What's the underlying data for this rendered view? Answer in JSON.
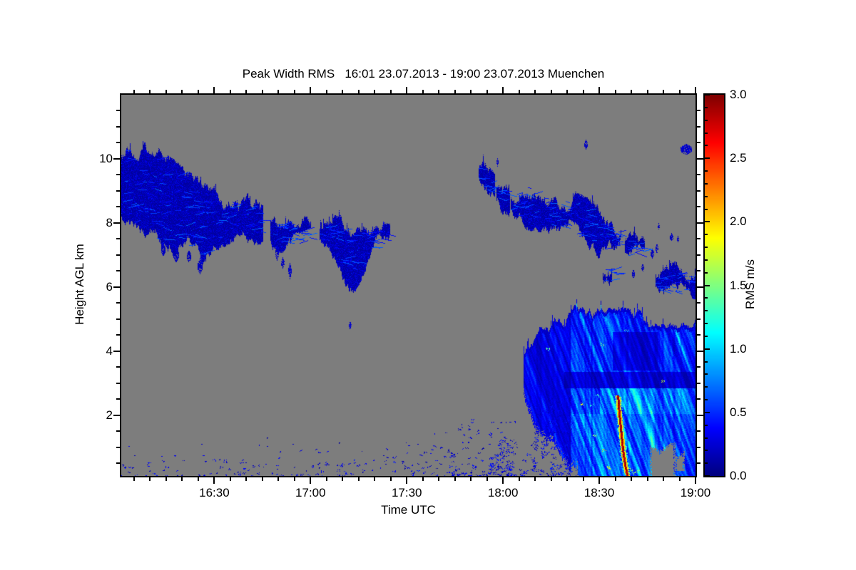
{
  "page": {
    "background": "#ffffff"
  },
  "chart_data": {
    "type": "heatmap",
    "title": "Peak Width RMS   16:01 23.07.2013 - 19:00 23.07.2013 Muenchen",
    "xlabel": "Time UTC",
    "ylabel": "Height AGL km",
    "value_label": "RMS m/s",
    "no_data_color": "#7d7d7d",
    "frame_color": "#000000",
    "text_color": "#000000",
    "render_seed": 7,
    "x_axis": {
      "start_min": 1,
      "end_min": 180,
      "start_label": "16:01",
      "end_label": "19:00",
      "major_ticks": [
        {
          "t": 30,
          "label": "16:30"
        },
        {
          "t": 60,
          "label": "17:00"
        },
        {
          "t": 90,
          "label": "17:30"
        },
        {
          "t": 120,
          "label": "18:00"
        },
        {
          "t": 150,
          "label": "18:30"
        },
        {
          "t": 180,
          "label": "19:00"
        }
      ],
      "minor_step_min": 5
    },
    "y_axis": {
      "min_km": 0.1,
      "max_km": 12.0,
      "major_ticks": [
        {
          "h": 2,
          "label": "2"
        },
        {
          "h": 4,
          "label": "4"
        },
        {
          "h": 6,
          "label": "6"
        },
        {
          "h": 8,
          "label": "8"
        },
        {
          "h": 10,
          "label": "10"
        }
      ],
      "minor_step_km": 0.5
    },
    "colorbar": {
      "min": 0,
      "max": 3,
      "major_ticks": [
        {
          "v": 0.0,
          "label": "0.0"
        },
        {
          "v": 0.5,
          "label": "0.5"
        },
        {
          "v": 1.0,
          "label": "1.0"
        },
        {
          "v": 1.5,
          "label": "1.5"
        },
        {
          "v": 2.0,
          "label": "2.0"
        },
        {
          "v": 2.5,
          "label": "2.5"
        },
        {
          "v": 3.0,
          "label": "3.0"
        }
      ],
      "minor_step": 0.1,
      "colormap": "jet"
    },
    "features": {
      "clouds": [
        {
          "name": "cirrus-deck-west",
          "value": [
            0.07,
            0.42
          ],
          "columns": [
            [
              1,
              8.3,
              10.2
            ],
            [
              3,
              8.05,
              10.38
            ],
            [
              6,
              7.9,
              10.32
            ],
            [
              9,
              7.7,
              10.22
            ],
            [
              12,
              7.5,
              10.02
            ],
            [
              15,
              7.38,
              9.82
            ],
            [
              18,
              7.3,
              9.58
            ],
            [
              21,
              7.28,
              9.32
            ],
            [
              24,
              7.05,
              9.15
            ],
            [
              26,
              6.7,
              9.02
            ],
            [
              28,
              7.28,
              8.95
            ],
            [
              31,
              7.5,
              8.87
            ],
            [
              34,
              7.65,
              8.78
            ],
            [
              37,
              7.78,
              8.68
            ],
            [
              40,
              7.68,
              8.58
            ],
            [
              43,
              7.62,
              8.5
            ],
            [
              45,
              7.72,
              8.4
            ]
          ]
        },
        {
          "name": "cirrus-mid-a",
          "value": [
            0.07,
            0.4
          ],
          "columns": [
            [
              47.5,
              7.55,
              8.15
            ],
            [
              50,
              7.4,
              8.05
            ],
            [
              53,
              7.35,
              7.97
            ],
            [
              56,
              7.32,
              7.92
            ],
            [
              58,
              7.4,
              7.88
            ],
            [
              60,
              7.5,
              7.8
            ]
          ]
        },
        {
          "name": "cirrus-mid-b",
          "value": [
            0.07,
            0.45
          ],
          "columns": [
            [
              62.8,
              7.45,
              7.72
            ],
            [
              65,
              7.3,
              7.85
            ],
            [
              68,
              7.1,
              7.9
            ],
            [
              70,
              6.55,
              7.9
            ],
            [
              72,
              6.1,
              7.88
            ],
            [
              74,
              6.2,
              7.82
            ],
            [
              76,
              6.6,
              7.8
            ],
            [
              78,
              7.0,
              7.8
            ],
            [
              80,
              7.2,
              7.77
            ],
            [
              82,
              7.38,
              7.72
            ],
            [
              84.5,
              7.5,
              7.62
            ]
          ]
        },
        {
          "name": "cirrus-east-frag-1",
          "value": [
            0.07,
            0.35
          ],
          "columns": [
            [
              112.3,
              9.3,
              9.78
            ],
            [
              114,
              9.1,
              9.6
            ],
            [
              116,
              8.95,
              9.38
            ],
            [
              117.2,
              9.0,
              9.2
            ]
          ]
        },
        {
          "name": "cirrus-east-frag-2",
          "value": [
            0.07,
            0.35
          ],
          "columns": [
            [
              118,
              8.75,
              9.12
            ],
            [
              120,
              8.6,
              9.05
            ],
            [
              122,
              8.55,
              8.9
            ]
          ]
        },
        {
          "name": "cirrus-deck-east",
          "value": [
            0.07,
            0.42
          ],
          "columns": [
            [
              122.5,
              8.35,
              8.9
            ],
            [
              125,
              8.2,
              9.05
            ],
            [
              128,
              8.1,
              9.12
            ],
            [
              131,
              8.05,
              9.0
            ],
            [
              134,
              7.95,
              8.9
            ],
            [
              137,
              7.85,
              8.8
            ],
            [
              140,
              7.8,
              8.72
            ],
            [
              143,
              7.6,
              8.6
            ],
            [
              146,
              7.42,
              8.45
            ],
            [
              149,
              7.25,
              8.3
            ],
            [
              152,
              7.15,
              8.1
            ],
            [
              155,
              7.1,
              7.9
            ],
            [
              157,
              7.2,
              7.7
            ]
          ]
        },
        {
          "name": "cirrus-east-frag-3",
          "value": [
            0.07,
            0.3
          ],
          "columns": [
            [
              158,
              7.0,
              7.5
            ],
            [
              160,
              6.88,
              7.42
            ],
            [
              162,
              6.95,
              7.3
            ],
            [
              164,
              7.0,
              7.22
            ]
          ]
        },
        {
          "name": "midlevel-blob",
          "value": [
            0.07,
            0.35
          ],
          "columns": [
            [
              151,
              6.2,
              6.55
            ],
            [
              153,
              6.12,
              6.6
            ],
            [
              155.5,
              6.25,
              6.5
            ]
          ]
        },
        {
          "name": "band-low-east",
          "value": [
            0.07,
            0.4
          ],
          "columns": [
            [
              167.5,
              6.0,
              6.3
            ],
            [
              170,
              5.85,
              6.4
            ],
            [
              173,
              5.78,
              6.45
            ],
            [
              176,
              5.85,
              6.42
            ],
            [
              178,
              5.9,
              6.38
            ],
            [
              180,
              5.82,
              6.4
            ]
          ]
        }
      ],
      "patches": [
        [
          14,
          7.15,
          1.2,
          0.4,
          0.18
        ],
        [
          18,
          7.0,
          1.5,
          0.45,
          0.18
        ],
        [
          22,
          6.95,
          1.3,
          0.4,
          0.18
        ],
        [
          25.5,
          6.65,
          1.2,
          0.5,
          0.2
        ],
        [
          49.5,
          7.05,
          1.0,
          0.45,
          0.2
        ],
        [
          51.2,
          6.75,
          0.8,
          0.35,
          0.2
        ],
        [
          53.5,
          6.5,
          0.9,
          0.5,
          0.22
        ],
        [
          72.3,
          4.8,
          0.6,
          0.25,
          0.25
        ],
        [
          118.2,
          9.9,
          0.6,
          0.25,
          0.2
        ],
        [
          145.7,
          10.45,
          0.9,
          0.3,
          0.2
        ],
        [
          177,
          10.3,
          3.2,
          0.35,
          0.22
        ],
        [
          166.5,
          7.05,
          0.8,
          0.3,
          0.2
        ],
        [
          167.8,
          7.2,
          0.7,
          0.3,
          0.2
        ],
        [
          168.5,
          7.9,
          0.5,
          0.2,
          0.2
        ],
        [
          172.5,
          7.55,
          0.8,
          0.25,
          0.2
        ],
        [
          174.5,
          7.5,
          0.5,
          0.2,
          0.2
        ],
        [
          160.5,
          6.4,
          0.8,
          0.3,
          0.2
        ],
        [
          163.5,
          6.6,
          0.6,
          0.25,
          0.2
        ]
      ],
      "precipitation": {
        "name": "convective-precip-east",
        "columns": [
          [
            126.5,
            2.6,
            3.9
          ],
          [
            128,
            2.2,
            4.2
          ],
          [
            130,
            1.8,
            4.38
          ],
          [
            132,
            1.4,
            4.55
          ],
          [
            134,
            1.05,
            4.72
          ],
          [
            136,
            0.78,
            4.88
          ],
          [
            138,
            0.5,
            5.0
          ],
          [
            140,
            0.3,
            5.1
          ],
          [
            142,
            0.15,
            5.15
          ],
          [
            144,
            0.1,
            5.05
          ],
          [
            146,
            0.1,
            5.1
          ],
          [
            148,
            0.1,
            5.06
          ],
          [
            150,
            0.1,
            5.22
          ],
          [
            151,
            0.1,
            5.32
          ],
          [
            152,
            0.1,
            5.12
          ],
          [
            154,
            0.1,
            5.0
          ],
          [
            156,
            0.1,
            5.1
          ],
          [
            158,
            0.1,
            5.05
          ],
          [
            160,
            0.1,
            5.0
          ],
          [
            162,
            0.1,
            5.08
          ],
          [
            164,
            0.1,
            5.0
          ],
          [
            166,
            0.1,
            5.06
          ],
          [
            168,
            0.1,
            5.1
          ],
          [
            170,
            0.1,
            5.0
          ],
          [
            172,
            0.1,
            5.05
          ],
          [
            174,
            0.1,
            5.0
          ],
          [
            176,
            0.1,
            5.08
          ],
          [
            178,
            0.1,
            5.02
          ],
          [
            180,
            0.1,
            5.06
          ]
        ],
        "base_value": 0.55,
        "streaks_diag_slope": 0.37,
        "modifiers": [
          {
            "name": "dark-band",
            "t": [
              139,
              180
            ],
            "h": [
              2.85,
              3.35
            ],
            "mul": 0.5,
            "add": 0
          },
          {
            "name": "bright-band",
            "t": [
              150,
              180
            ],
            "h": [
              2.05,
              2.85
            ],
            "mul": 1.3,
            "add": 0.1
          },
          {
            "name": "dark-blob",
            "t": [
              154,
              168
            ],
            "h": [
              3.4,
              4.6
            ],
            "mul": 0.55,
            "add": 0
          },
          {
            "name": "left-dim",
            "t": [
              126,
              141
            ],
            "h": [
              0.1,
              5.4
            ],
            "mul": 0.6,
            "add": 0
          },
          {
            "name": "lower-bright",
            "t": [
              141,
              180
            ],
            "h": [
              0.1,
              2.05
            ],
            "mul": 1.15,
            "add": 0.05
          }
        ],
        "holes": [
          [
            165.8,
            173.5,
            0.1,
            0.95
          ],
          [
            173.5,
            176.5,
            0.25,
            0.7
          ]
        ],
        "fall_streak": {
          "path": [
            [
              155.9,
              2.6
            ],
            [
              156.3,
              2.05
            ],
            [
              156.9,
              1.45
            ],
            [
              157.5,
              0.85
            ],
            [
              158.2,
              0.4
            ],
            [
              158.8,
              0.12
            ]
          ],
          "core_value": 2.85,
          "fringe_value": 1.85
        },
        "accents": [
          [
            151.5,
            0.9,
            2.1
          ],
          [
            153,
            0.35,
            1.8
          ],
          [
            159.8,
            0.3,
            1.7
          ],
          [
            160.8,
            0.2,
            1.6
          ],
          [
            148.5,
            1.35,
            1.5
          ],
          [
            147.5,
            2.3,
            1.3
          ],
          [
            149.5,
            2.6,
            1.25
          ],
          [
            144.5,
            2.35,
            1.8
          ],
          [
            134,
            4.05,
            1.4
          ],
          [
            170,
            3.05,
            1.7
          ],
          [
            162,
            0.25,
            1.5
          ],
          [
            158.5,
            4.65,
            1.3
          ],
          [
            151,
            4.2,
            1.6
          ]
        ]
      },
      "speck_clusters": [
        {
          "name": "ground-clutter",
          "layer": "under",
          "t": [
            1,
            180
          ],
          "h": [
            0.1,
            0.6
          ],
          "count": 170,
          "value": [
            0.1,
            0.45
          ],
          "size": [
            1,
            3
          ],
          "bottom_weight": 2.2
        },
        {
          "name": "low-scatter",
          "layer": "under",
          "t": [
            2,
            85
          ],
          "h": [
            0.4,
            1.3
          ],
          "count": 30,
          "value": [
            0.12,
            0.38
          ],
          "size": [
            1,
            2
          ],
          "bottom_weight": 2.0
        },
        {
          "name": "mid-low-scatter",
          "layer": "under",
          "t": [
            85,
            105
          ],
          "h": [
            0.15,
            1.6
          ],
          "count": 35,
          "value": [
            0.12,
            0.4
          ],
          "size": [
            1,
            3
          ],
          "bottom_weight": 1.6
        },
        {
          "name": "pre-precip-scatter",
          "layer": "under",
          "t": [
            103,
            126.5
          ],
          "h": [
            0.1,
            1.9
          ],
          "count": 90,
          "value": [
            0.12,
            0.45
          ],
          "size": [
            1,
            3
          ],
          "bottom_weight": 1.8
        },
        {
          "name": "mid-dots",
          "layer": "under",
          "t": [
            40,
            85
          ],
          "h": [
            0.3,
            1.1
          ],
          "count": 15,
          "value": [
            0.12,
            0.35
          ],
          "size": [
            1,
            2
          ],
          "bottom_weight": 1.5
        },
        {
          "name": "precip-left-virga-low",
          "layer": "over",
          "t": [
            127,
            141
          ],
          "h": [
            0.1,
            1.1
          ],
          "count": 55,
          "value": [
            0.15,
            0.5
          ],
          "size": [
            2,
            5
          ],
          "bottom_weight": 1.2
        },
        {
          "name": "precip-left-virga-mid",
          "layer": "over",
          "t": [
            130,
            141.5
          ],
          "h": [
            1.0,
            2.6
          ],
          "count": 60,
          "value": [
            0.15,
            0.45
          ],
          "size": [
            2,
            5
          ],
          "bottom_weight": 1.0
        },
        {
          "name": "cluster-1750",
          "layer": "over",
          "t": [
            116,
            123
          ],
          "h": [
            0.2,
            1.5
          ],
          "count": 45,
          "value": [
            0.15,
            0.45
          ],
          "size": [
            2,
            4
          ],
          "bottom_weight": 1.5
        }
      ]
    }
  }
}
